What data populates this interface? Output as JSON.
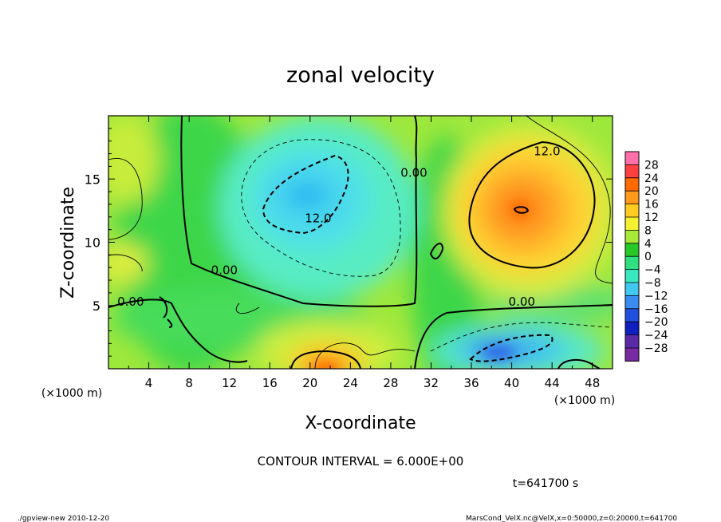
{
  "chart_data": {
    "type": "heatmap",
    "title": "zonal velocity",
    "xlabel": "X-coordinate",
    "ylabel": "Z-coordinate",
    "x_unit_label": "(×1000 m)",
    "y_unit_label": "(×1000 m)",
    "xlim": [
      0,
      50
    ],
    "ylim": [
      0,
      20
    ],
    "x_ticks": [
      4,
      8,
      12,
      16,
      20,
      24,
      28,
      32,
      36,
      40,
      44,
      48
    ],
    "y_ticks": [
      5,
      10,
      15
    ],
    "colorbar": {
      "labels": [
        "28",
        "24",
        "20",
        "16",
        "12",
        "8",
        "4",
        "0",
        "−4",
        "−8",
        "−12",
        "−16",
        "−20",
        "−24",
        "−28"
      ],
      "colors": [
        "#ff6fa8",
        "#ff4040",
        "#ff6a00",
        "#ff9a1a",
        "#ffcc22",
        "#f5f030",
        "#a8e838",
        "#28c828",
        "#30e080",
        "#38e8c0",
        "#40c8f0",
        "#3a8cf0",
        "#2050e0",
        "#1020c0",
        "#5a2aa8",
        "#7a2aa0"
      ]
    },
    "contour_labels": [
      {
        "text": "12.0",
        "x": 43.5,
        "z": 17.2
      },
      {
        "text": "0.00",
        "x": 30.3,
        "z": 15.5
      },
      {
        "text": "12.0",
        "x": 20.8,
        "z": 11.9
      },
      {
        "text": "0.00",
        "x": 11.5,
        "z": 7.8
      },
      {
        "text": "0.00",
        "x": 2.2,
        "z": 5.3
      },
      {
        "text": "0.00",
        "x": 41.0,
        "z": 5.3
      }
    ],
    "features": [
      {
        "kind": "max",
        "x": 41,
        "z": 12.5,
        "value": 16
      },
      {
        "kind": "min",
        "x": 16.5,
        "z": 13.5,
        "value": -12
      },
      {
        "kind": "max",
        "x": 21,
        "z": 0.5,
        "value": 16
      },
      {
        "kind": "min",
        "x": 40,
        "z": 1.5,
        "value": -14
      }
    ],
    "contour_interval": "CONTOUR INTERVAL =  6.000E+00",
    "time": "t=641700 s"
  },
  "footer": {
    "left": "./gpview-new   2010-12-20",
    "right": "MarsCond_VelX.nc@VelX,x=0:50000,z=0:20000,t=641700"
  }
}
